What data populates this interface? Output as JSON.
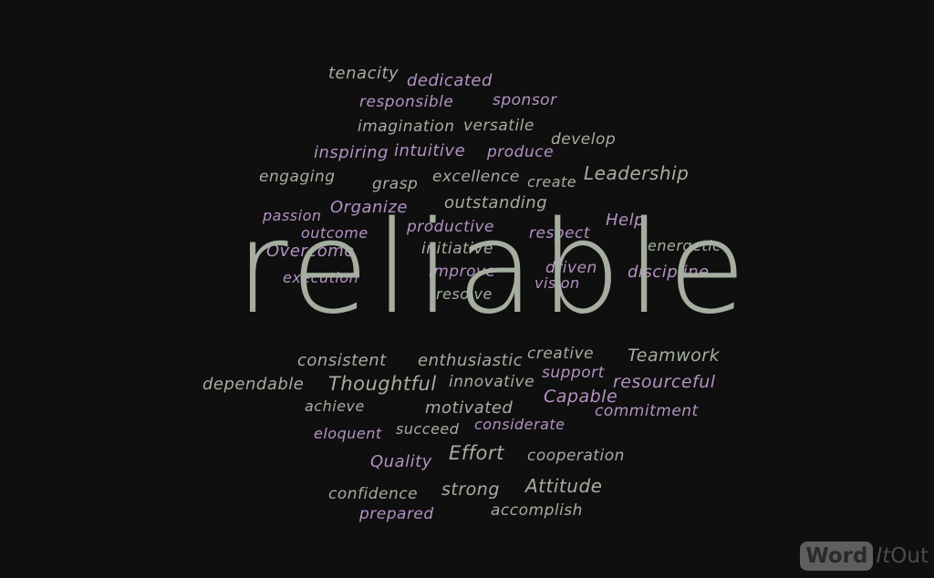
{
  "colors": {
    "background": "#0f0f0f",
    "gray": "#a5aea0",
    "purple": "#b392c4",
    "logo_box": "#5e5e5e",
    "logo_text": "#4a4a4a"
  },
  "words": [
    {
      "text": "tenacity",
      "c": "gray"
    },
    {
      "text": "dedicated",
      "c": "purple"
    },
    {
      "text": "responsible",
      "c": "purple"
    },
    {
      "text": "sponsor",
      "c": "purple"
    },
    {
      "text": "imagination",
      "c": "gray"
    },
    {
      "text": "versatile",
      "c": "gray"
    },
    {
      "text": "develop",
      "c": "gray"
    },
    {
      "text": "inspiring",
      "c": "purple"
    },
    {
      "text": "intuitive",
      "c": "purple"
    },
    {
      "text": "produce",
      "c": "purple"
    },
    {
      "text": "engaging",
      "c": "gray"
    },
    {
      "text": "grasp",
      "c": "gray"
    },
    {
      "text": "excellence",
      "c": "gray"
    },
    {
      "text": "create",
      "c": "gray"
    },
    {
      "text": "Leadership",
      "c": "gray"
    },
    {
      "text": "passion",
      "c": "purple"
    },
    {
      "text": "Organize",
      "c": "purple"
    },
    {
      "text": "outstanding",
      "c": "gray"
    },
    {
      "text": "outcome",
      "c": "purple"
    },
    {
      "text": "productive",
      "c": "purple"
    },
    {
      "text": "Help",
      "c": "purple"
    },
    {
      "text": "respect",
      "c": "purple"
    },
    {
      "text": "Overcome",
      "c": "purple"
    },
    {
      "text": "initiative",
      "c": "gray"
    },
    {
      "text": "energetic",
      "c": "gray"
    },
    {
      "text": "execution",
      "c": "purple"
    },
    {
      "text": "improve",
      "c": "purple"
    },
    {
      "text": "driven",
      "c": "purple"
    },
    {
      "text": "discipline",
      "c": "purple"
    },
    {
      "text": "vision",
      "c": "purple"
    },
    {
      "text": "resolve",
      "c": "gray"
    },
    {
      "text": "reliable",
      "c": "gray"
    },
    {
      "text": "consistent",
      "c": "gray"
    },
    {
      "text": "enthusiastic",
      "c": "gray"
    },
    {
      "text": "creative",
      "c": "gray"
    },
    {
      "text": "Teamwork",
      "c": "gray"
    },
    {
      "text": "dependable",
      "c": "gray"
    },
    {
      "text": "Thoughtful",
      "c": "gray"
    },
    {
      "text": "innovative",
      "c": "gray"
    },
    {
      "text": "support",
      "c": "purple"
    },
    {
      "text": "resourceful",
      "c": "purple"
    },
    {
      "text": "achieve",
      "c": "gray"
    },
    {
      "text": "motivated",
      "c": "gray"
    },
    {
      "text": "Capable",
      "c": "purple"
    },
    {
      "text": "commitment",
      "c": "purple"
    },
    {
      "text": "eloquent",
      "c": "purple"
    },
    {
      "text": "succeed",
      "c": "gray"
    },
    {
      "text": "considerate",
      "c": "purple"
    },
    {
      "text": "Quality",
      "c": "purple"
    },
    {
      "text": "Effort",
      "c": "gray"
    },
    {
      "text": "cooperation",
      "c": "gray"
    },
    {
      "text": "confidence",
      "c": "gray"
    },
    {
      "text": "strong",
      "c": "gray"
    },
    {
      "text": "Attitude",
      "c": "gray"
    },
    {
      "text": "prepared",
      "c": "purple"
    },
    {
      "text": "accomplish",
      "c": "gray"
    }
  ],
  "logo": {
    "word": "Word",
    "it": "It",
    "out": "Out"
  }
}
